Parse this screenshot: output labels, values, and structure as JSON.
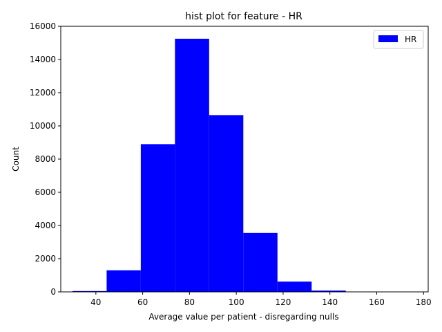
{
  "chart_data": {
    "type": "bar",
    "title": "hist plot for feature -  HR",
    "xlabel": "Average value per patient - disregarding nulls",
    "ylabel": "Count",
    "xlim": [
      25,
      182
    ],
    "ylim": [
      0,
      16000
    ],
    "x_ticks": [
      40,
      60,
      80,
      100,
      120,
      140,
      160,
      180
    ],
    "y_ticks": [
      0,
      2000,
      4000,
      6000,
      8000,
      10000,
      12000,
      14000,
      16000
    ],
    "bins": [
      {
        "x0": 30.0,
        "x1": 44.6,
        "count": 50
      },
      {
        "x0": 44.6,
        "x1": 59.2,
        "count": 1300
      },
      {
        "x0": 59.2,
        "x1": 73.8,
        "count": 8900
      },
      {
        "x0": 73.8,
        "x1": 88.4,
        "count": 15250
      },
      {
        "x0": 88.4,
        "x1": 103.0,
        "count": 10650
      },
      {
        "x0": 103.0,
        "x1": 117.6,
        "count": 3550
      },
      {
        "x0": 117.6,
        "x1": 132.2,
        "count": 620
      },
      {
        "x0": 132.2,
        "x1": 146.8,
        "count": 80
      },
      {
        "x0": 146.8,
        "x1": 161.4,
        "count": 8
      },
      {
        "x0": 161.4,
        "x1": 176.0,
        "count": 3
      }
    ],
    "series": [
      {
        "name": "HR",
        "color": "#0000ff"
      }
    ],
    "legend_position": "top-right",
    "grid": false
  }
}
